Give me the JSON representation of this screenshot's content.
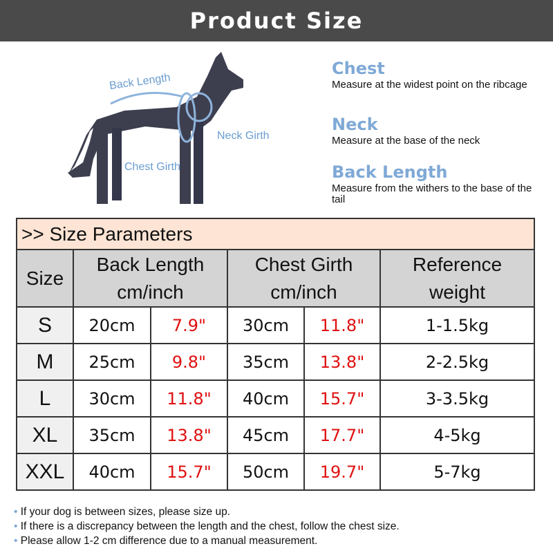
{
  "banner": {
    "title": "Product Size"
  },
  "diagram": {
    "back_length": "Back Length",
    "neck_girth": "Neck Girth",
    "chest_girth": "Chest Girth"
  },
  "measures": [
    {
      "title": "Chest",
      "desc": "Measure at the widest point on the ribcage"
    },
    {
      "title": "Neck",
      "desc": "Measure at the base of the neck"
    },
    {
      "title": "Back Length",
      "desc": "Measure from the withers to the base of the tail"
    }
  ],
  "table": {
    "title": ">> Size Parameters",
    "headers": {
      "size": "Size",
      "back": "Back Length cm/inch",
      "chest": "Chest Girth cm/inch",
      "weight": "Reference weight"
    },
    "rows": [
      {
        "size": "S",
        "back_cm": "20cm",
        "back_in": "7.9\"",
        "chest_cm": "30cm",
        "chest_in": "11.8\"",
        "weight": "1-1.5kg"
      },
      {
        "size": "M",
        "back_cm": "25cm",
        "back_in": "9.8\"",
        "chest_cm": "35cm",
        "chest_in": "13.8\"",
        "weight": "2-2.5kg"
      },
      {
        "size": "L",
        "back_cm": "30cm",
        "back_in": "11.8\"",
        "chest_cm": "40cm",
        "chest_in": "15.7\"",
        "weight": "3-3.5kg"
      },
      {
        "size": "XL",
        "back_cm": "35cm",
        "back_in": "13.8\"",
        "chest_cm": "45cm",
        "chest_in": "17.7\"",
        "weight": "4-5kg"
      },
      {
        "size": "XXL",
        "back_cm": "40cm",
        "back_in": "15.7\"",
        "chest_cm": "50cm",
        "chest_in": "19.7\"",
        "weight": "5-7kg"
      }
    ]
  },
  "notes": [
    "If your dog is between sizes, please size up.",
    "If there is a discrepancy between the length and the chest, follow the chest size.",
    "Please allow 1-2 cm difference due to a manual measurement."
  ],
  "colors": {
    "banner": "#4a4a4a",
    "accent": "#7fa9d6",
    "inch": "#e01010",
    "title_row": "#fde4d4",
    "header_row": "#d4d4d4"
  }
}
